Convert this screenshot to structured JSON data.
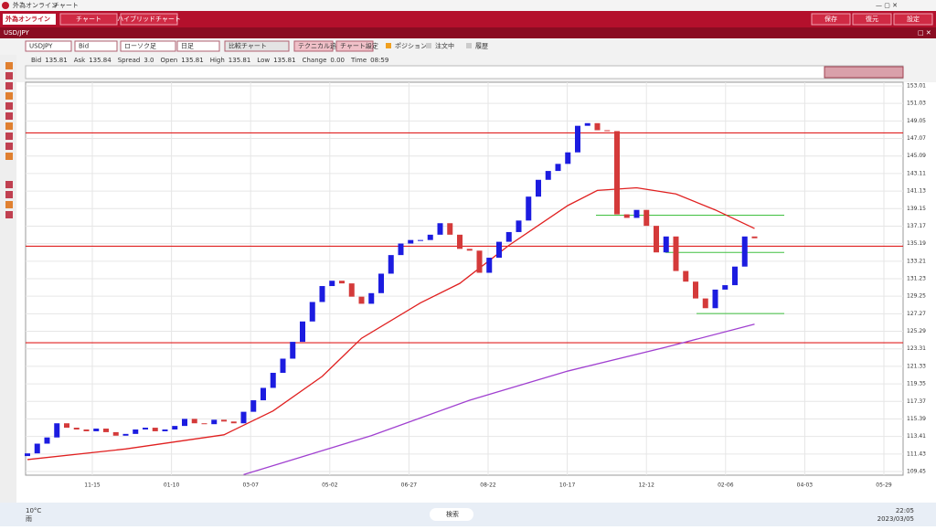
{
  "window": {
    "app_title": "外為オンライン",
    "title": "チャート"
  },
  "menu": {
    "left": [
      "チャート",
      "ハイブリッドチャート"
    ],
    "right": [
      "保存",
      "復元",
      "設定"
    ]
  },
  "pair_tab": "USD/JPY",
  "toolbar": {
    "symbol": "USDJPY",
    "price_side": "Bid",
    "chart_type": "ローソク足",
    "period": "日足",
    "compare": "比較チャート",
    "add_technical": "テクニカル追加",
    "chart_settings": "チャート設定",
    "checks": [
      "ポジション",
      "注文中",
      "履歴"
    ]
  },
  "info": [
    {
      "label": "Bid",
      "value": "135.81"
    },
    {
      "label": "Ask",
      "value": "135.84"
    },
    {
      "label": "Spread",
      "value": "3.0"
    },
    {
      "label": "Open",
      "value": "135.81"
    },
    {
      "label": "High",
      "value": "135.81"
    },
    {
      "label": "Low",
      "value": "135.81"
    },
    {
      "label": "Change",
      "value": "0.00"
    },
    {
      "label": "Time",
      "value": "08:59"
    }
  ],
  "chart": {
    "ylim": [
      109.04,
      153.42
    ],
    "yticks": [
      153.01,
      151.03,
      149.05,
      147.07,
      145.09,
      143.11,
      141.13,
      139.15,
      137.17,
      135.19,
      133.21,
      131.23,
      129.25,
      127.27,
      125.29,
      123.31,
      121.33,
      119.35,
      117.37,
      115.39,
      113.41,
      111.43,
      109.45
    ],
    "xlabels": [
      "11-15",
      "01-10",
      "03-07",
      "05-02",
      "06-27",
      "08-22",
      "10-17",
      "12-12",
      "02-06",
      "04-03",
      "05-29"
    ],
    "candles": {
      "up_color": "#1c1ce0",
      "down_color": "#d43a3a",
      "open": [
        111.2,
        111.5,
        112.6,
        113.3,
        114.9,
        114.4,
        114.2,
        114.0,
        114.3,
        113.9,
        113.5,
        113.7,
        114.2,
        114.4,
        114.0,
        114.2,
        114.6,
        115.4,
        114.9,
        114.8,
        115.3,
        115.1,
        114.9,
        116.2,
        117.5,
        118.9,
        120.6,
        122.2,
        124.1,
        126.4,
        128.6,
        130.4,
        131.0,
        130.7,
        129.2,
        128.4,
        129.6,
        131.8,
        133.9,
        135.2,
        135.6,
        135.6,
        136.2,
        137.5,
        136.2,
        134.6,
        134.4,
        131.9,
        133.6,
        135.4,
        136.5,
        137.8,
        140.5,
        142.4,
        143.4,
        144.2,
        145.5,
        148.5,
        148.8,
        148.0,
        147.9,
        138.5,
        138.1,
        139.0,
        137.2,
        134.2,
        136.0,
        132.1,
        130.9,
        129.0,
        127.9,
        130.0,
        130.5,
        132.6,
        136.0
      ],
      "close": [
        111.5,
        112.6,
        113.3,
        114.9,
        114.4,
        114.2,
        114.0,
        114.3,
        113.9,
        113.5,
        113.7,
        114.2,
        114.4,
        114.0,
        114.2,
        114.6,
        115.4,
        114.9,
        114.8,
        115.3,
        115.1,
        114.9,
        116.2,
        117.5,
        118.9,
        120.6,
        122.2,
        124.1,
        126.4,
        128.6,
        130.4,
        131.0,
        130.7,
        129.2,
        128.4,
        129.6,
        131.8,
        133.9,
        135.2,
        135.6,
        135.6,
        136.2,
        137.5,
        136.2,
        134.6,
        134.4,
        131.9,
        133.6,
        135.4,
        136.5,
        137.8,
        140.5,
        142.4,
        143.4,
        144.2,
        145.5,
        148.5,
        148.8,
        148.0,
        147.9,
        138.5,
        138.1,
        139.0,
        137.2,
        134.2,
        136.0,
        132.1,
        130.9,
        129.0,
        127.9,
        130.0,
        130.5,
        132.6,
        136.0,
        135.8
      ]
    },
    "lines": [
      {
        "color": "#e02020",
        "x": [
          0,
          10,
          20,
          25,
          30,
          34,
          40,
          44,
          49,
          55,
          58,
          62,
          66,
          70,
          74
        ],
        "values": [
          110.8,
          112,
          113.6,
          116.3,
          120.2,
          124.5,
          128.5,
          130.7,
          135,
          139.5,
          141.2,
          141.5,
          140.8,
          139,
          136.9
        ]
      },
      {
        "color": "#a040d0",
        "x": [
          22,
          35,
          45,
          55,
          65,
          74
        ],
        "values": [
          109.1,
          113.5,
          117.5,
          120.8,
          123.5,
          126.1
        ]
      }
    ],
    "hlines": {
      "color": "#e02020",
      "values": [
        147.7,
        134.9,
        124.0
      ]
    },
    "green_lines": {
      "color": "#40c040",
      "values": [
        138.4,
        134.2,
        127.3
      ]
    }
  },
  "taskbar": {
    "weather_temp": "10°C",
    "weather": "雨",
    "search": "検索",
    "time": "22:05",
    "date": "2023/03/05"
  }
}
